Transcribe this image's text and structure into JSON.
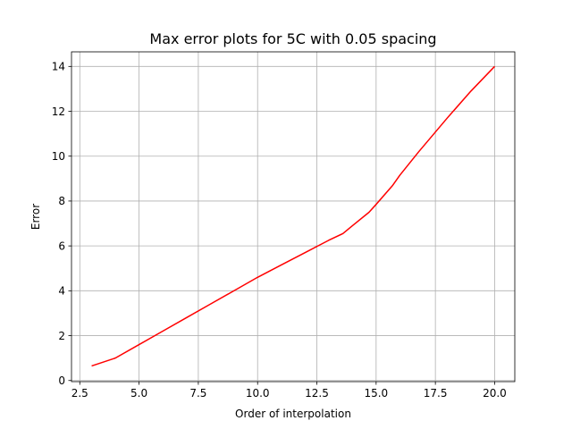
{
  "chart_data": {
    "type": "line",
    "title": "Max error plots for 5C with 0.05 spacing",
    "xlabel": "Order of interpolation",
    "ylabel": "Error",
    "xlim": [
      2.15,
      20.85
    ],
    "ylim": [
      -0.05,
      14.65
    ],
    "xticks": [
      2.5,
      5.0,
      7.5,
      10.0,
      12.5,
      15.0,
      17.5,
      20.0
    ],
    "xtick_labels": [
      "2.5",
      "5.0",
      "7.5",
      "10.0",
      "12.5",
      "15.0",
      "17.5",
      "20.0"
    ],
    "yticks": [
      0,
      2,
      4,
      6,
      8,
      10,
      12,
      14
    ],
    "ytick_labels": [
      "0",
      "2",
      "4",
      "6",
      "8",
      "10",
      "12",
      "14"
    ],
    "grid": true,
    "series": [
      {
        "color": "#ff0000",
        "x": [
          3,
          4,
          5,
          6,
          7,
          8,
          9,
          10,
          11,
          12,
          13,
          13.6,
          14,
          14.7,
          15,
          15.7,
          16,
          16.8,
          17,
          18,
          19,
          20
        ],
        "y": [
          0.65,
          1.0,
          1.6,
          2.2,
          2.8,
          3.4,
          4.0,
          4.6,
          5.15,
          5.7,
          6.25,
          6.55,
          6.9,
          7.5,
          7.85,
          8.7,
          9.15,
          10.2,
          10.45,
          11.7,
          12.9,
          14.0
        ]
      }
    ]
  }
}
